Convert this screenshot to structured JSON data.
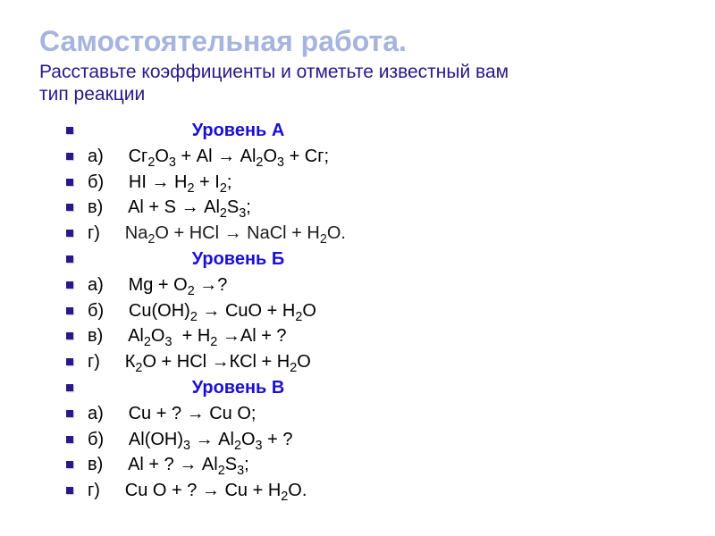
{
  "title": "Самостоятельная  работа.",
  "subtitle_line1": "Расставьте коэффициенты и отметьте известный вам",
  "subtitle_line2": "тип реакции",
  "colors": {
    "title_color": "#a6b4de",
    "subtitle_color": "#28188b",
    "bullet_color": "#28188b",
    "level_color": "#1b0fd5",
    "text_color": "#000000",
    "na2o_color": "#1b1b1b"
  },
  "layout": {
    "level_indent": "                     ",
    "letter_gap": "     "
  },
  "rows": [
    {
      "type": "level",
      "label": "Уровень А"
    },
    {
      "type": "equation",
      "letter": "а)",
      "eq": "Сг<sub>2</sub>О<sub>3</sub> + Аl → Аl<sub>2</sub>О<sub>3</sub> + Сг;"
    },
    {
      "type": "equation",
      "letter": "б)",
      "eq": "НI → Н<sub>2</sub> + I<sub>2</sub>;"
    },
    {
      "type": "equation",
      "letter": "в)",
      "eq": "Аl + S → Аl<sub>2</sub>S<sub>3</sub>;"
    },
    {
      "type": "equation",
      "letter": "г)",
      "eq": "Nа<sub>2</sub>О + НСl → NаСl + Н<sub>2</sub>О.",
      "color_key": "na2o_color"
    },
    {
      "type": "level",
      "label": "Уровень Б"
    },
    {
      "type": "equation",
      "letter": "а)",
      "eq": "Мg + О<sub>2</sub> →?"
    },
    {
      "type": "equation",
      "letter": "б)",
      "eq": "Сu(ОН)<sub>2</sub> → СuО + Н<sub>2</sub>О"
    },
    {
      "type": "equation",
      "letter": "в)",
      "eq": "Аl<sub>2</sub>О<sub>3</sub>  + Н<sub>2</sub> →Аl + ?"
    },
    {
      "type": "equation",
      "letter": "г)",
      "eq": "К<sub>2</sub>О + НСl →КСl + Н<sub>2</sub>О"
    },
    {
      "type": "level",
      "label": "Уровень В"
    },
    {
      "type": "equation",
      "letter": "а)",
      "eq": "Сu + ? → Сu О;"
    },
    {
      "type": "equation",
      "letter": "б)",
      "eq": "Аl(ОН)<sub>3</sub> → Аl<sub>2</sub>О<sub>3</sub> + ?"
    },
    {
      "type": "equation",
      "letter": "в)",
      "eq": "Аl + ? → Аl<sub>2</sub>S<sub>3</sub>;"
    },
    {
      "type": "equation",
      "letter": "г)",
      "eq": "Сu О + ? → Сu + Н<sub>2</sub>О."
    }
  ]
}
